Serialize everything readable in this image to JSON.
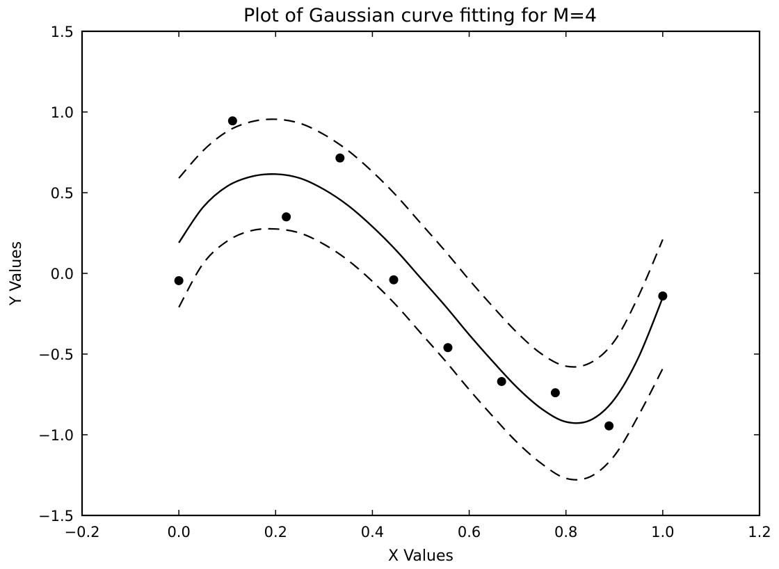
{
  "chart_data": {
    "type": "line",
    "title": "Plot of Gaussian curve fitting for M=4",
    "xlabel": "X Values",
    "ylabel": "Y Values",
    "xlim": [
      -0.2,
      1.2
    ],
    "ylim": [
      -1.5,
      1.5
    ],
    "xticks": [
      -0.2,
      0.0,
      0.2,
      0.4,
      0.6,
      0.8,
      1.0,
      1.2
    ],
    "yticks": [
      -1.5,
      -1.0,
      -0.5,
      0.0,
      0.5,
      1.0,
      1.5
    ],
    "xtick_labels": [
      "−0.2",
      "0.0",
      "0.2",
      "0.4",
      "0.6",
      "0.8",
      "1.0",
      "1.2"
    ],
    "ytick_labels": [
      "−1.5",
      "−1.0",
      "−0.5",
      "0.0",
      "0.5",
      "1.0",
      "1.5"
    ],
    "grid": false,
    "series": [
      {
        "style": "scatter",
        "marker": "circle",
        "color": "#000000",
        "x": [
          0.0,
          0.111,
          0.222,
          0.333,
          0.444,
          0.556,
          0.667,
          0.778,
          0.889,
          1.0
        ],
        "y": [
          -0.045,
          0.945,
          0.35,
          0.715,
          -0.04,
          -0.46,
          -0.67,
          -0.74,
          -0.945,
          -0.14
        ]
      },
      {
        "style": "solid-line",
        "color": "#000000",
        "x": [
          0.0,
          0.05,
          0.1,
          0.15,
          0.2,
          0.25,
          0.3,
          0.35,
          0.4,
          0.45,
          0.5,
          0.55,
          0.6,
          0.65,
          0.7,
          0.75,
          0.8,
          0.85,
          0.9,
          0.95,
          1.0
        ],
        "y": [
          0.19,
          0.41,
          0.54,
          0.6,
          0.615,
          0.59,
          0.52,
          0.42,
          0.29,
          0.14,
          -0.03,
          -0.2,
          -0.38,
          -0.55,
          -0.71,
          -0.84,
          -0.92,
          -0.91,
          -0.78,
          -0.52,
          -0.15
        ]
      },
      {
        "style": "dashed-line",
        "color": "#000000",
        "x": [
          0.0,
          0.05,
          0.1,
          0.15,
          0.2,
          0.25,
          0.3,
          0.35,
          0.4,
          0.45,
          0.5,
          0.55,
          0.6,
          0.65,
          0.7,
          0.75,
          0.8,
          0.85,
          0.9,
          0.95,
          1.0
        ],
        "y": [
          0.59,
          0.76,
          0.88,
          0.94,
          0.955,
          0.93,
          0.86,
          0.76,
          0.63,
          0.48,
          0.31,
          0.14,
          -0.04,
          -0.21,
          -0.37,
          -0.5,
          -0.575,
          -0.555,
          -0.42,
          -0.14,
          0.21
        ]
      },
      {
        "style": "dashed-line",
        "color": "#000000",
        "x": [
          0.0,
          0.05,
          0.1,
          0.15,
          0.2,
          0.25,
          0.3,
          0.35,
          0.4,
          0.45,
          0.5,
          0.55,
          0.6,
          0.65,
          0.7,
          0.75,
          0.8,
          0.85,
          0.9,
          0.95,
          1.0
        ],
        "y": [
          -0.21,
          0.06,
          0.2,
          0.265,
          0.275,
          0.25,
          0.18,
          0.08,
          -0.05,
          -0.2,
          -0.37,
          -0.54,
          -0.72,
          -0.89,
          -1.05,
          -1.18,
          -1.27,
          -1.26,
          -1.13,
          -0.88,
          -0.59
        ]
      }
    ]
  }
}
